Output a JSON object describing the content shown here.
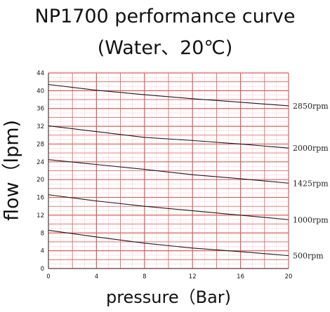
{
  "title": "NP1700 performance curve",
  "subtitle": "(Water、20℃)",
  "chart_data": {
    "type": "line",
    "title": "NP1700 performance curve",
    "subtitle": "(Water、20℃)",
    "xlabel": "pressure（Bar)",
    "ylabel": "flow（lpm)",
    "xlim": [
      0,
      20
    ],
    "ylim": [
      0,
      44
    ],
    "x_ticks": [
      0,
      4,
      8,
      12,
      16,
      20
    ],
    "y_ticks": [
      0,
      4,
      8,
      12,
      16,
      20,
      24,
      28,
      32,
      36,
      40,
      44
    ],
    "grid": true,
    "series": [
      {
        "name": "2850rpm",
        "x": [
          0,
          4,
          8,
          12,
          16,
          20
        ],
        "values": [
          41.4,
          40.1,
          39.1,
          38.2,
          37.4,
          36.6
        ]
      },
      {
        "name": "2000rpm",
        "x": [
          0,
          4,
          8,
          12,
          16,
          20
        ],
        "values": [
          32.1,
          30.8,
          29.5,
          28.8,
          28.0,
          27.1
        ]
      },
      {
        "name": "1425rpm",
        "x": [
          0,
          4,
          8,
          12,
          16,
          20
        ],
        "values": [
          24.5,
          23.4,
          22.3,
          21.1,
          20.2,
          19.2
        ]
      },
      {
        "name": "1000rpm",
        "x": [
          0,
          4,
          8,
          12,
          16,
          20
        ],
        "values": [
          16.6,
          15.2,
          14.0,
          13.0,
          12.0,
          11.0
        ]
      },
      {
        "name": "500rpm",
        "x": [
          0,
          4,
          8,
          12,
          16,
          20
        ],
        "values": [
          8.6,
          7.1,
          5.7,
          4.6,
          3.8,
          2.9
        ]
      }
    ],
    "colors": {
      "major_grid": "#e8585a",
      "minor_grid": "#f0a8aa",
      "axis": "#333333",
      "line": "#1a1a1a"
    }
  }
}
